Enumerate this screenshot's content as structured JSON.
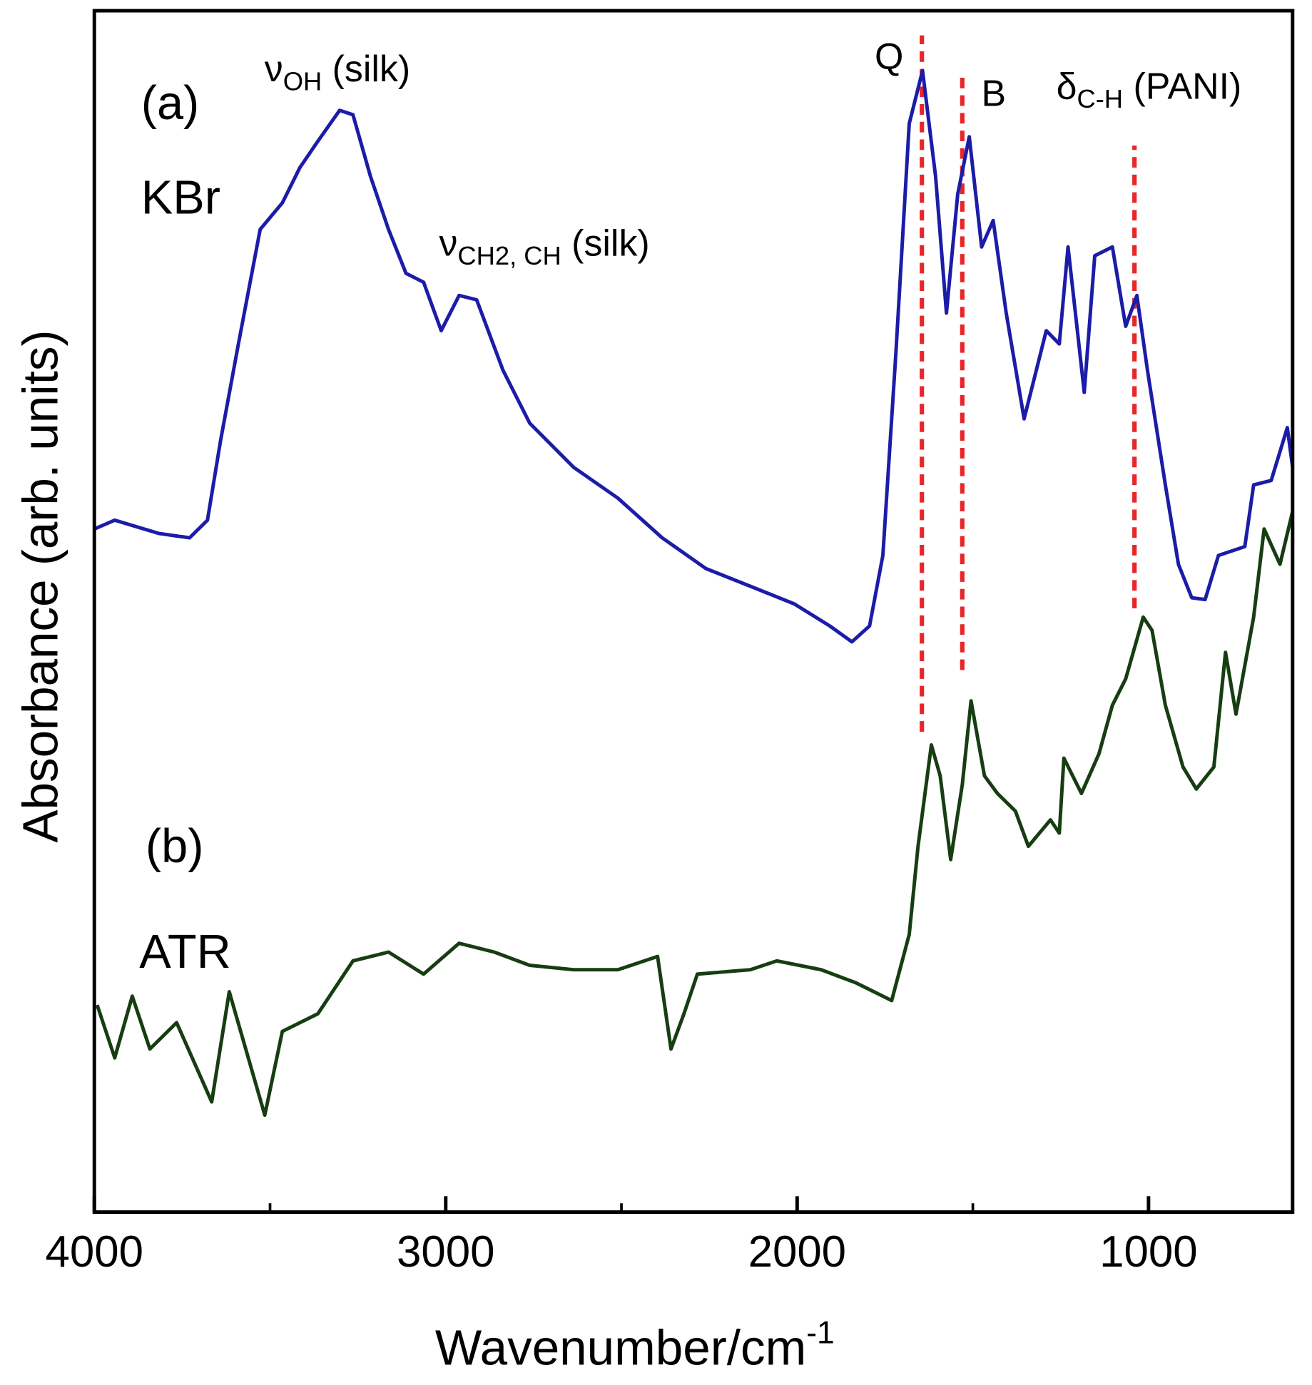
{
  "chart_data": {
    "type": "line",
    "xlabel": {
      "text": "Wavenumber/cm",
      "sup": "-1"
    },
    "ylabel": "Absorbance (arb. units)",
    "xlim": [
      4000,
      590
    ],
    "ylim": [
      0,
      1363
    ],
    "xticks": [
      4000,
      3000,
      2000,
      1000
    ],
    "xticks_minor": [
      3500,
      2500,
      1500
    ],
    "series": [
      {
        "name": "KBr",
        "color": "#1c1ca8",
        "x": [
          4000,
          3942,
          3817,
          3729,
          3678,
          3641,
          3590,
          3528,
          3465,
          3415,
          3364,
          3302,
          3264,
          3214,
          3163,
          3113,
          3063,
          3013,
          2962,
          2912,
          2837,
          2761,
          2636,
          2510,
          2384,
          2259,
          2133,
          2008,
          1907,
          1844,
          1794,
          1756,
          1719,
          1681,
          1643,
          1606,
          1575,
          1543,
          1510,
          1475,
          1442,
          1405,
          1354,
          1291,
          1254,
          1229,
          1183,
          1153,
          1103,
          1065,
          1033,
          1003,
          952,
          915,
          877,
          839,
          801,
          726,
          701,
          651,
          605,
          590
        ],
        "values": [
          775,
          785,
          770,
          765,
          785,
          875,
          985,
          1115,
          1145,
          1185,
          1215,
          1250,
          1245,
          1175,
          1115,
          1065,
          1055,
          1000,
          1040,
          1035,
          955,
          895,
          845,
          810,
          765,
          730,
          710,
          690,
          665,
          647,
          665,
          745,
          975,
          1235,
          1295,
          1175,
          1020,
          1155,
          1220,
          1095,
          1125,
          1020,
          900,
          1000,
          985,
          1095,
          930,
          1085,
          1095,
          1005,
          1040,
          955,
          825,
          735,
          697,
          695,
          745,
          755,
          825,
          830,
          890,
          845
        ]
      },
      {
        "name": "ATR",
        "color": "#173d12",
        "x": [
          3992,
          3942,
          3892,
          3842,
          3766,
          3666,
          3616,
          3515,
          3465,
          3364,
          3264,
          3163,
          3063,
          2962,
          2862,
          2761,
          2636,
          2510,
          2397,
          2359,
          2322,
          2284,
          2133,
          2058,
          1932,
          1832,
          1731,
          1681,
          1656,
          1618,
          1593,
          1563,
          1530,
          1505,
          1467,
          1430,
          1379,
          1342,
          1279,
          1254,
          1241,
          1191,
          1141,
          1103,
          1065,
          1015,
          990,
          952,
          902,
          864,
          814,
          781,
          751,
          701,
          671,
          626,
          590
        ],
        "values": [
          235,
          175,
          245,
          185,
          215,
          125,
          250,
          110,
          205,
          225,
          285,
          295,
          270,
          305,
          295,
          280,
          275,
          275,
          290,
          185,
          225,
          270,
          275,
          285,
          275,
          260,
          240,
          315,
          415,
          530,
          495,
          400,
          485,
          580,
          495,
          475,
          455,
          415,
          445,
          430,
          515,
          475,
          520,
          575,
          605,
          675,
          660,
          575,
          505,
          480,
          505,
          635,
          565,
          675,
          775,
          735,
          795
        ]
      }
    ],
    "vlines": {
      "color": "#e8262a",
      "lines": [
        {
          "x": 1645,
          "ymin": 545,
          "ymax": 1335
        },
        {
          "x": 1530,
          "ymin": 615,
          "ymax": 1295
        },
        {
          "x": 1040,
          "ymin": 685,
          "ymax": 1210
        }
      ]
    },
    "annotations": [
      {
        "text": "(a)"
      },
      {
        "text": "KBr"
      },
      {
        "text": "(b)"
      },
      {
        "text": "ATR"
      },
      {
        "text": "Q"
      },
      {
        "text": "B"
      },
      {
        "text": "ν",
        "sub": "OH",
        "suffix": " (silk)"
      },
      {
        "text": "ν",
        "sub": "CH2, CH",
        "suffix": " (silk)"
      },
      {
        "text": "δ",
        "sub": "C-H",
        "suffix": " (PANI)"
      }
    ]
  }
}
